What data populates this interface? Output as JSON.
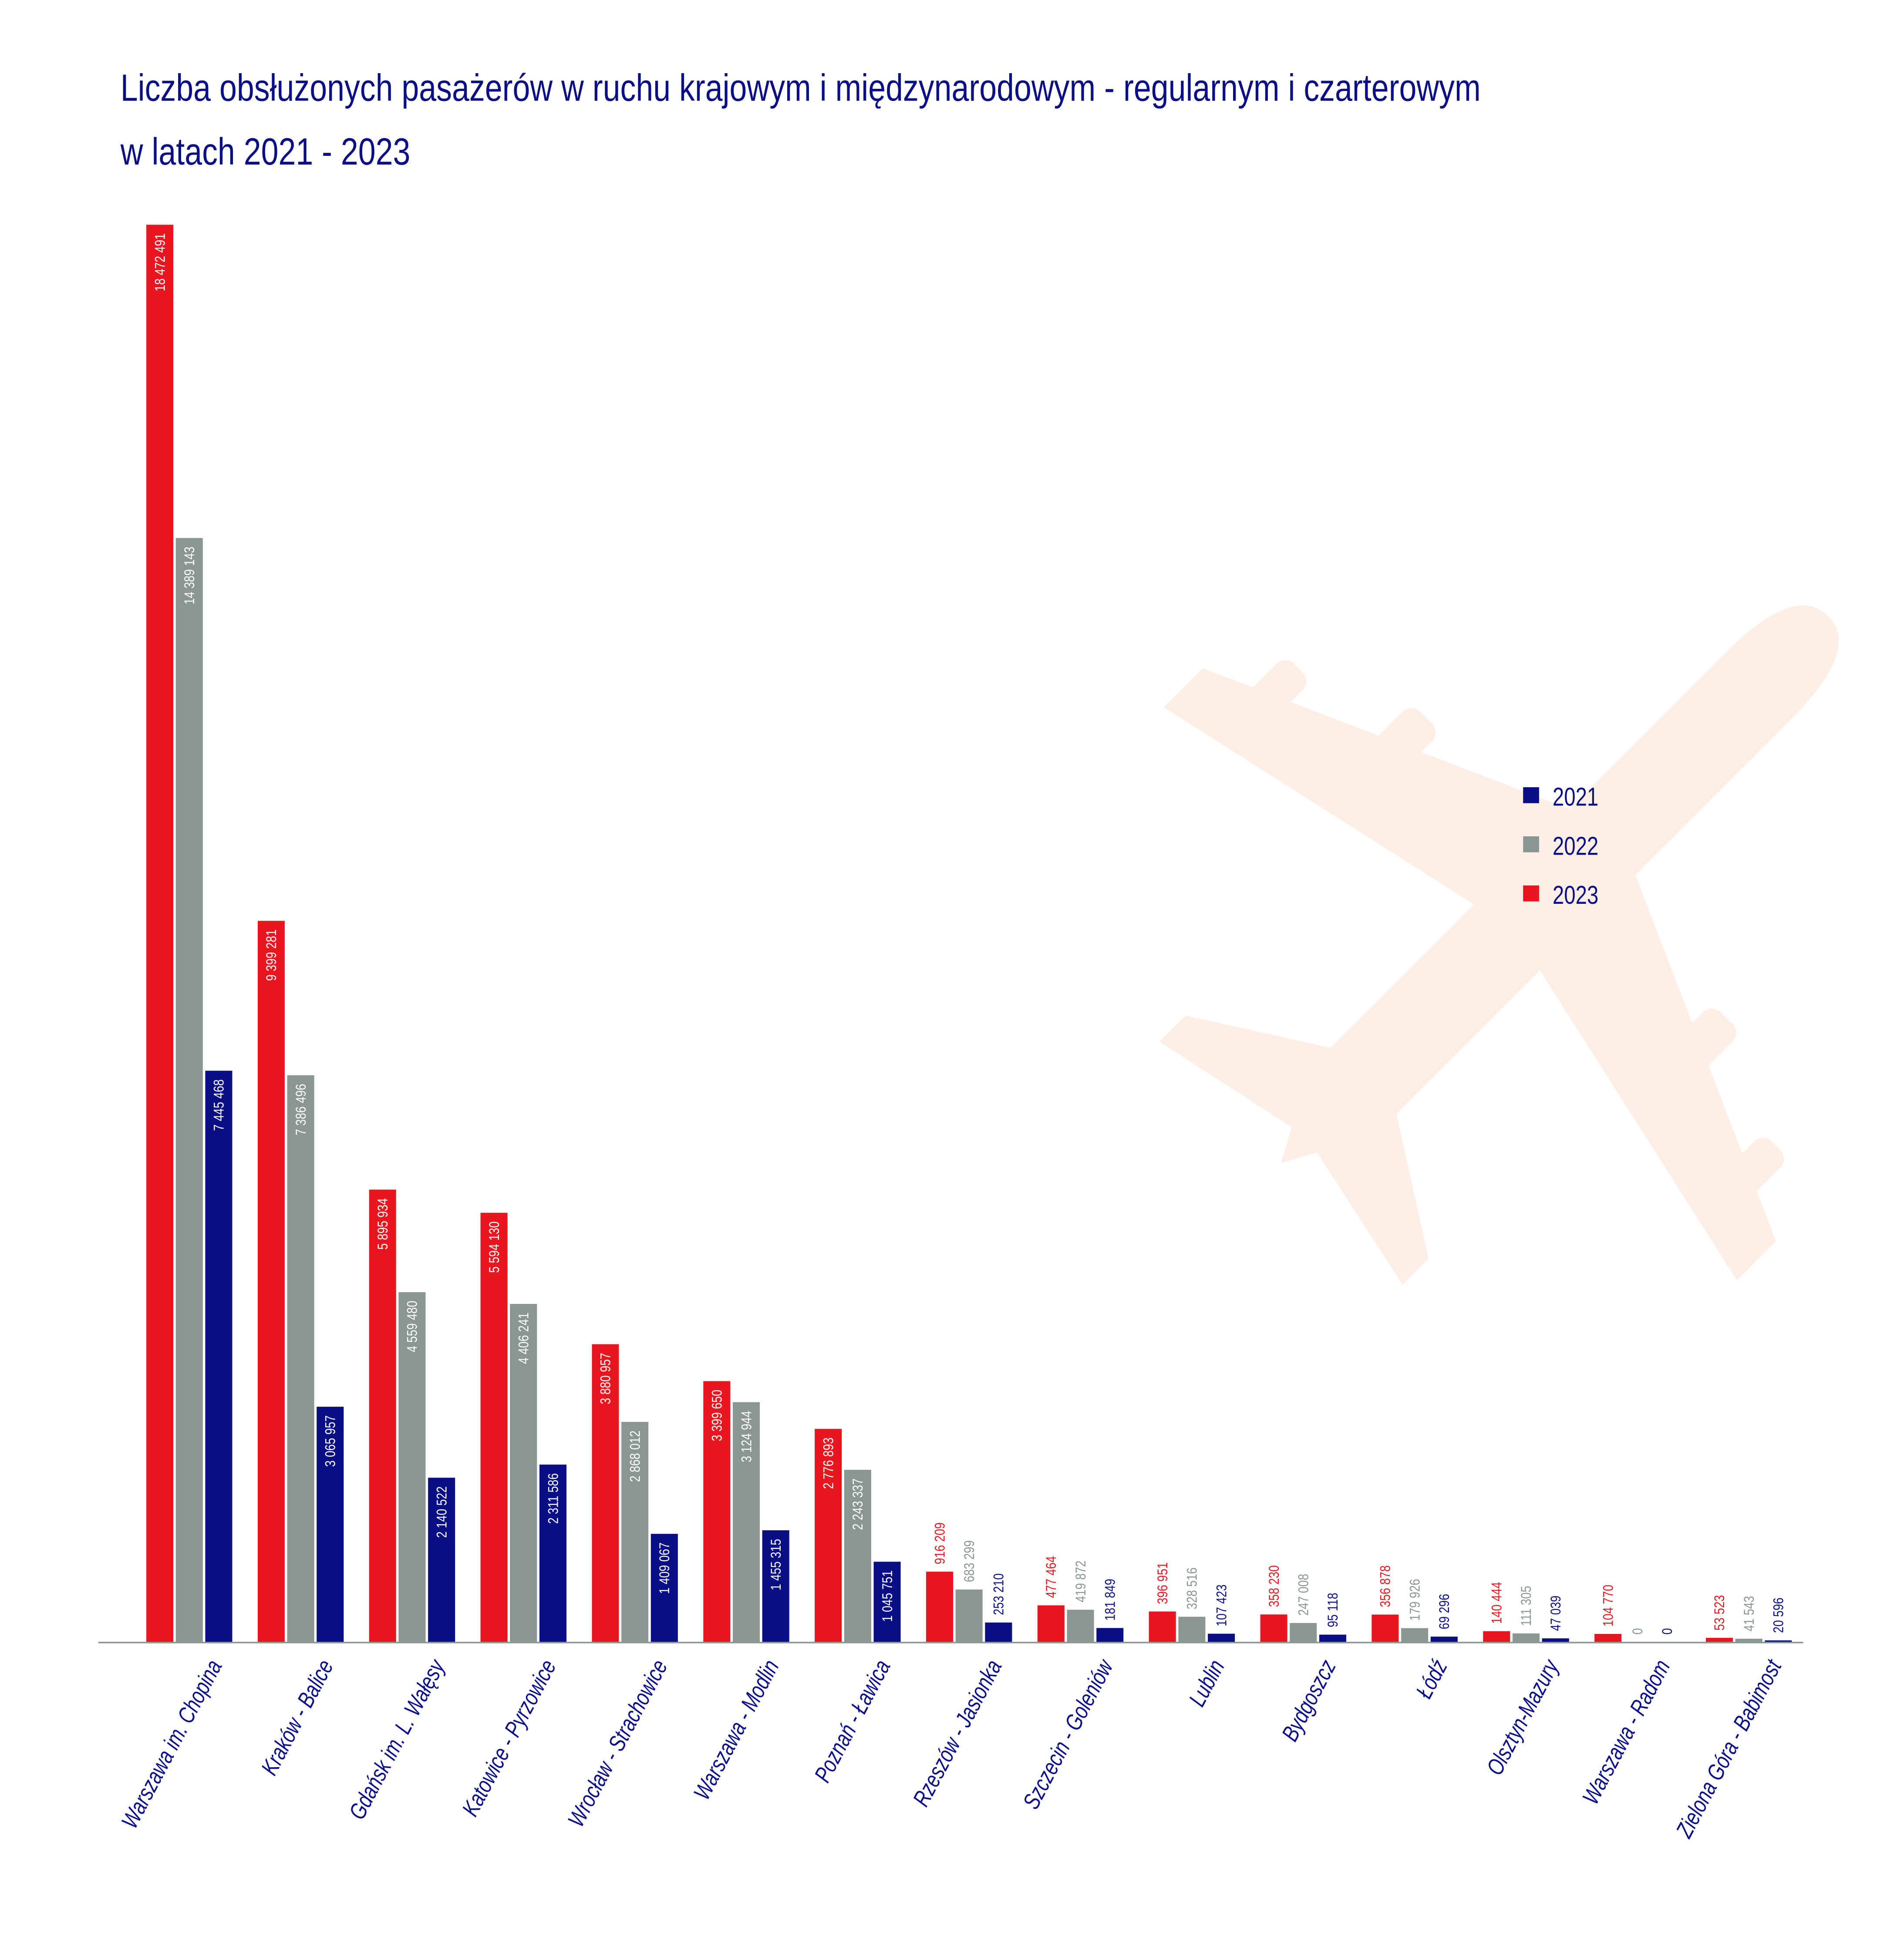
{
  "chart_data": {
    "type": "bar",
    "title_line1": "Liczba obsłużonych pasażerów w ruchu krajowym i międzynarodowym - regularnym i czarterowym",
    "title_line2": "w latach 2021 - 2023",
    "categories": [
      "Warszawa im. Chopina",
      "Kraków - Balice",
      "Gdańsk im. L. Wałęsy",
      "Katowice - Pyrzowice",
      "Wrocław - Strachowice",
      "Warszawa - Modlin",
      "Poznań - Ławica",
      "Rzeszów - Jasionka",
      "Szczecin - Goleniów",
      "Lublin",
      "Bydgoszcz",
      "Łódź",
      "Olsztyn-Mazury",
      "Warszawa - Radom",
      "Zielona Góra - Babimost"
    ],
    "series": [
      {
        "name": "2023",
        "color": "#e8171f",
        "values": [
          18472491,
          9399281,
          5895934,
          5594130,
          3880957,
          3399650,
          2776893,
          916209,
          477464,
          396951,
          358230,
          356878,
          140444,
          104770,
          53523
        ],
        "labels": [
          "18 472 491",
          "9 399 281",
          "5 895 934",
          "5 594 130",
          "3 880 957",
          "3 399 650",
          "2 776 893",
          "916 209",
          "477 464",
          "396 951",
          "358 230",
          "356 878",
          "140 444",
          "104 770",
          "53 523"
        ]
      },
      {
        "name": "2022",
        "color": "#8a9694",
        "values": [
          14389143,
          7386496,
          4559480,
          4406241,
          2868012,
          3124944,
          2243337,
          683299,
          419872,
          328516,
          247008,
          179926,
          111305,
          0,
          41543
        ],
        "labels": [
          "14 389 143",
          "7 386 496",
          "4 559 480",
          "4 406 241",
          "2 868 012",
          "3 124 944",
          "2 243 337",
          "683 299",
          "419 872",
          "328 516",
          "247 008",
          "179 926",
          "111 305",
          "0",
          "41 543"
        ]
      },
      {
        "name": "2021",
        "color": "#0b0f85",
        "values": [
          7445468,
          3065957,
          2140522,
          2311586,
          1409067,
          1455315,
          1045751,
          253210,
          181849,
          107423,
          95118,
          69296,
          47039,
          0,
          20596
        ],
        "labels": [
          "7 445 468",
          "3 065 957",
          "2 140 522",
          "2 311 586",
          "1 409 067",
          "1 455 315",
          "1 045 751",
          "253 210",
          "181 849",
          "107 423",
          "95 118",
          "69 296",
          "47 039",
          "0",
          "20 596"
        ]
      }
    ],
    "legend": {
      "placement": "right",
      "items": [
        "2021",
        "2022",
        "2023"
      ]
    },
    "ylim": [
      0,
      18472491
    ],
    "grid": false,
    "title_color": "#0b0f85",
    "background_icon": "airplane-icon",
    "background_icon_color": "#fdeee6"
  }
}
